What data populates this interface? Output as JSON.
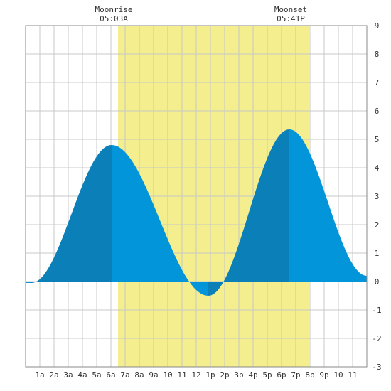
{
  "chart_data": {
    "type": "area",
    "title": "",
    "xlabel": "",
    "ylabel": "",
    "xlim": [
      0,
      24
    ],
    "ylim": [
      -3,
      9
    ],
    "grid": true,
    "x_ticks": [
      {
        "x": 1,
        "label": "1a"
      },
      {
        "x": 2,
        "label": "2a"
      },
      {
        "x": 3,
        "label": "3a"
      },
      {
        "x": 4,
        "label": "4a"
      },
      {
        "x": 5,
        "label": "5a"
      },
      {
        "x": 6,
        "label": "6a"
      },
      {
        "x": 7,
        "label": "7a"
      },
      {
        "x": 8,
        "label": "8a"
      },
      {
        "x": 9,
        "label": "9a"
      },
      {
        "x": 10,
        "label": "10"
      },
      {
        "x": 11,
        "label": "11"
      },
      {
        "x": 12,
        "label": "12"
      },
      {
        "x": 13,
        "label": "1p"
      },
      {
        "x": 14,
        "label": "2p"
      },
      {
        "x": 15,
        "label": "3p"
      },
      {
        "x": 16,
        "label": "4p"
      },
      {
        "x": 17,
        "label": "5p"
      },
      {
        "x": 18,
        "label": "6p"
      },
      {
        "x": 19,
        "label": "7p"
      },
      {
        "x": 20,
        "label": "8p"
      },
      {
        "x": 21,
        "label": "9p"
      },
      {
        "x": 22,
        "label": "10"
      },
      {
        "x": 23,
        "label": "11"
      }
    ],
    "y_ticks": [
      -3,
      -2,
      -1,
      0,
      1,
      2,
      3,
      4,
      5,
      6,
      7,
      8,
      9
    ],
    "extremes": [
      {
        "x": 0.4,
        "y": -0.05
      },
      {
        "x": 6.05,
        "y": 4.8
      },
      {
        "x": 12.85,
        "y": -0.5
      },
      {
        "x": 18.55,
        "y": 5.35
      },
      {
        "x": 24.0,
        "y": 0.2
      }
    ],
    "daylight": {
      "start": 6.5,
      "end": 19.95
    },
    "moonrise": {
      "label": "Moonrise",
      "time": "05:03A"
    },
    "moonset": {
      "label": "Moonset",
      "time": "05:41P"
    },
    "colors": {
      "tide_rising": "#0b7fb8",
      "tide_falling": "#0395d9",
      "daylight": "#f5ee8e",
      "grid": "#c8c8c8",
      "frame": "#888888"
    }
  }
}
